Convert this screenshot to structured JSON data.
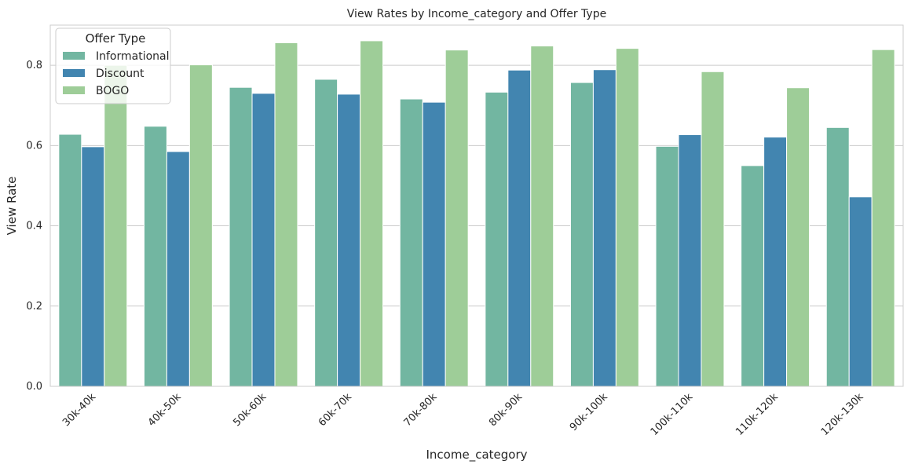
{
  "chart_data": {
    "type": "bar",
    "title": "View Rates by Income_category and Offer Type",
    "xlabel": "Income_category",
    "ylabel": "View Rate",
    "ylim": [
      0,
      0.9
    ],
    "yticks": [
      0.0,
      0.2,
      0.4,
      0.6,
      0.8
    ],
    "ytick_labels": [
      "0.0",
      "0.2",
      "0.4",
      "0.6",
      "0.8"
    ],
    "grid": "horizontal",
    "legend_placement": "top-left",
    "legend_title": "Offer Type",
    "categories": [
      "30k-40k",
      "40k-50k",
      "50k-60k",
      "60k-70k",
      "70k-80k",
      "80k-90k",
      "90k-100k",
      "100k-110k",
      "110k-120k",
      "120k-130k"
    ],
    "series": [
      {
        "name": "Informational",
        "color": "#72b6a1",
        "values": [
          0.628,
          0.648,
          0.745,
          0.765,
          0.716,
          0.733,
          0.757,
          0.598,
          0.55,
          0.645
        ]
      },
      {
        "name": "Discount",
        "color": "#4285b0",
        "values": [
          0.597,
          0.585,
          0.73,
          0.728,
          0.708,
          0.788,
          0.789,
          0.627,
          0.621,
          0.472
        ]
      },
      {
        "name": "BOGO",
        "color": "#9ecd98",
        "values": [
          0.8,
          0.801,
          0.856,
          0.861,
          0.838,
          0.848,
          0.842,
          0.784,
          0.744,
          0.839
        ]
      }
    ]
  }
}
